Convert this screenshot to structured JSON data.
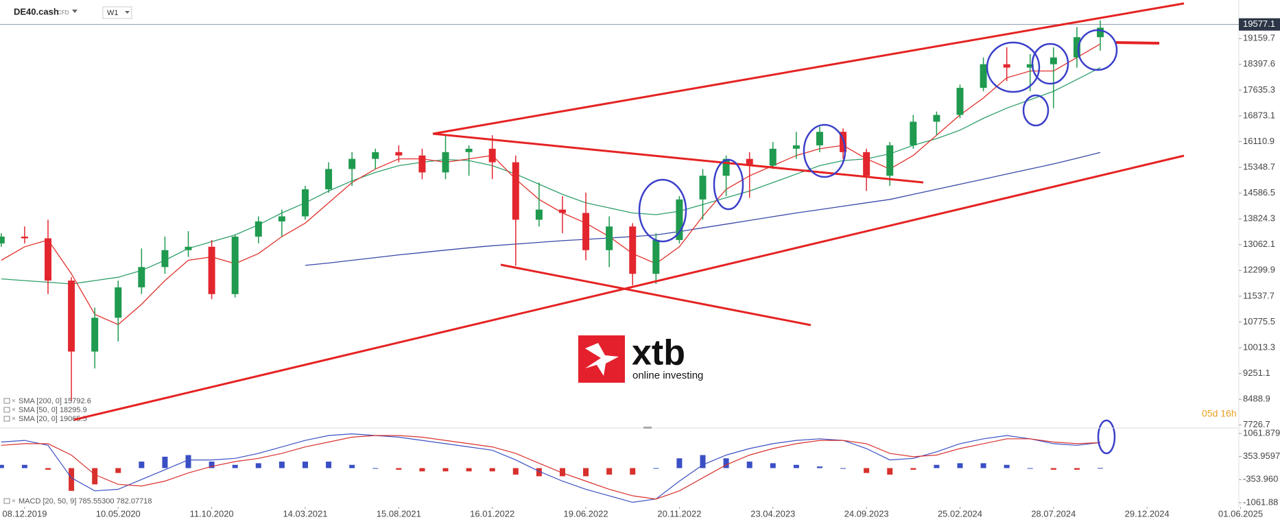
{
  "header": {
    "symbol": "DE40.cash",
    "instrument_type": "CFD",
    "timeframe": "W1"
  },
  "brand": {
    "name": "xtb",
    "tagline": "online investing"
  },
  "chart_data": {
    "type": "candlestick",
    "countdown": "05d 16h",
    "last_price": 19577.1,
    "categories": [
      null,
      "08.12.2019",
      null,
      null,
      null,
      "10.05.2020",
      null,
      null,
      null,
      "11.10.2020",
      null,
      null,
      null,
      "14.03.2021",
      null,
      null,
      null,
      "15.08.2021",
      null,
      null,
      null,
      "16.01.2022",
      null,
      null,
      null,
      "19.06.2022",
      null,
      null,
      null,
      "20.11.2022",
      null,
      null,
      null,
      "23.04.2023",
      null,
      null,
      null,
      "24.09.2023",
      null,
      null,
      null,
      "25.02.2024",
      null,
      null,
      null,
      "28.07.2024",
      null,
      null,
      null,
      "29.12.2024",
      null,
      null,
      null,
      "01.06.2025"
    ],
    "open": [
      13100,
      13300,
      13250,
      12000,
      9900,
      10900,
      11800,
      12400,
      12900,
      13000,
      11600,
      13300,
      13750,
      13900,
      14700,
      15300,
      15600,
      15800,
      15700,
      15200,
      15800,
      15900,
      15500,
      13800,
      14100,
      14000,
      12900,
      13600,
      12200,
      13200,
      14400,
      15100,
      15600,
      15400,
      15900,
      16000,
      16400,
      15800,
      15100,
      16000,
      16700,
      16900,
      17700,
      18400,
      18300,
      18400,
      18600,
      19200,
      null,
      null,
      null,
      null,
      null,
      null
    ],
    "high": [
      13400,
      13600,
      13800,
      12100,
      11200,
      12000,
      12950,
      13300,
      13460,
      13200,
      13350,
      13900,
      14100,
      14800,
      15500,
      15800,
      15900,
      16000,
      15900,
      16300,
      16000,
      16300,
      15700,
      14900,
      14500,
      14600,
      13900,
      13700,
      13400,
      14500,
      15300,
      15700,
      15800,
      16100,
      16400,
      16550,
      16500,
      15900,
      16100,
      16900,
      17000,
      17800,
      18600,
      18900,
      18700,
      18900,
      19500,
      19700,
      null,
      null,
      null,
      null,
      null,
      null
    ],
    "low": [
      13000,
      13100,
      11600,
      8440,
      9400,
      10200,
      11600,
      12200,
      12700,
      11450,
      11500,
      13100,
      13300,
      13800,
      14600,
      14800,
      15300,
      15500,
      15000,
      15000,
      15100,
      15000,
      12440,
      13600,
      13400,
      12600,
      12400,
      11860,
      11900,
      13100,
      13800,
      14500,
      14450,
      15300,
      15600,
      15800,
      15600,
      14650,
      14800,
      15900,
      16300,
      16800,
      17600,
      17900,
      17600,
      17100,
      18300,
      18800,
      null,
      null,
      null,
      null,
      null,
      null
    ],
    "close": [
      13300,
      13250,
      12000,
      9900,
      10900,
      11800,
      12400,
      12900,
      13000,
      11600,
      13300,
      13750,
      13900,
      14700,
      15300,
      15600,
      15800,
      15700,
      15200,
      15800,
      15900,
      15500,
      13800,
      14100,
      14000,
      12900,
      13600,
      12200,
      13200,
      14400,
      15100,
      15600,
      15400,
      15900,
      16000,
      16400,
      15800,
      15100,
      16000,
      16700,
      16900,
      17700,
      18400,
      18300,
      18400,
      18600,
      19200,
      19480,
      null,
      null,
      null,
      null,
      null,
      null
    ],
    "up_color": "#1f9a4f",
    "down_color": "#e3262e",
    "ylim": [
      7680,
      20300
    ],
    "yticks": [
      19159.7,
      18397.6,
      17635.3,
      16873.1,
      16110.9,
      15348.7,
      14586.5,
      13824.3,
      13062.1,
      12299.9,
      11537.7,
      10775.5,
      10013.3,
      9251.1,
      8488.9,
      7726.7
    ],
    "overlays": [
      {
        "name": "SMA [200, 0]",
        "last": 15792.6,
        "color": "#3848a8",
        "values": [
          null,
          null,
          null,
          null,
          null,
          null,
          null,
          null,
          null,
          null,
          null,
          null,
          null,
          12450,
          12520,
          12600,
          12680,
          12760,
          12830,
          12900,
          12970,
          13030,
          13080,
          13130,
          13180,
          13220,
          13260,
          13300,
          13350,
          13450,
          13560,
          13670,
          13780,
          13890,
          14000,
          14100,
          14200,
          14300,
          14400,
          14550,
          14700,
          14850,
          15000,
          15150,
          15300,
          15450,
          15620,
          15790,
          null,
          null,
          null,
          null,
          null,
          null
        ]
      },
      {
        "name": "SMA [50, 0]",
        "last": 18295.9,
        "color": "#2e9e6a",
        "values": [
          12050,
          12000,
          11950,
          11900,
          12000,
          12100,
          12300,
          12600,
          12950,
          13150,
          13350,
          13650,
          14000,
          14300,
          14650,
          14950,
          15200,
          15400,
          15500,
          15580,
          15550,
          15400,
          15150,
          14850,
          14550,
          14300,
          14150,
          14000,
          13950,
          14050,
          14250,
          14450,
          14650,
          14900,
          15150,
          15400,
          15550,
          15600,
          15750,
          16000,
          16200,
          16450,
          16800,
          17100,
          17350,
          17600,
          17950,
          18300,
          null,
          null,
          null,
          null,
          null,
          null
        ]
      },
      {
        "name": "SMA [20, 0]",
        "last": 19065.5,
        "color": "#e0302b",
        "values": [
          12600,
          13000,
          13200,
          12200,
          11000,
          10700,
          11300,
          12000,
          12600,
          12700,
          12500,
          12800,
          13300,
          13700,
          14300,
          14900,
          15300,
          15600,
          15600,
          15500,
          15600,
          15700,
          15000,
          14400,
          14000,
          13700,
          13300,
          12800,
          12500,
          13000,
          13900,
          14700,
          15100,
          15400,
          15700,
          15900,
          16000,
          15600,
          15300,
          15700,
          16300,
          16900,
          17400,
          18000,
          18200,
          18200,
          18600,
          19000,
          null,
          null,
          null,
          null,
          null,
          null
        ]
      }
    ],
    "macd": {
      "name": "MACD [20, 50, 9]",
      "legend_values": [
        {
          "value": 785.553,
          "label": "785.55300"
        },
        782.07718
      ],
      "ylim": [
        -1190,
        1190
      ],
      "yticks": [
        1061.879,
        353.9597,
        {
          "value": -353.96,
          "label": "-353.960"
        },
        -1061.88
      ],
      "line_color": "#3a4fc4",
      "signal_color": "#d8302c",
      "line": [
        800,
        850,
        700,
        -300,
        -700,
        -650,
        -350,
        -50,
        250,
        250,
        300,
        450,
        650,
        850,
        1000,
        1050,
        1000,
        950,
        850,
        750,
        650,
        550,
        250,
        -100,
        -400,
        -650,
        -850,
        -1050,
        -950,
        -400,
        100,
        400,
        600,
        750,
        850,
        900,
        850,
        600,
        250,
        300,
        500,
        750,
        900,
        1000,
        900,
        750,
        700,
        785.553,
        null,
        null,
        null,
        null,
        null,
        null
      ],
      "signal": [
        700,
        750,
        750,
        400,
        -200,
        -500,
        -550,
        -400,
        -150,
        50,
        200,
        300,
        450,
        650,
        800,
        950,
        1000,
        1000,
        950,
        850,
        750,
        650,
        450,
        150,
        -150,
        -400,
        -650,
        -850,
        -950,
        -700,
        -300,
        100,
        400,
        600,
        750,
        850,
        850,
        750,
        450,
        350,
        400,
        600,
        750,
        900,
        900,
        800,
        750,
        782.07718,
        null,
        null,
        null,
        null,
        null,
        null
      ],
      "histogram": [
        100,
        100,
        -50,
        -700,
        -500,
        -150,
        200,
        350,
        400,
        200,
        100,
        150,
        200,
        200,
        200,
        100,
        0,
        -50,
        -100,
        -100,
        -100,
        -100,
        -200,
        -250,
        -250,
        -250,
        -200,
        -200,
        0,
        300,
        400,
        300,
        200,
        150,
        100,
        50,
        0,
        -150,
        -200,
        -50,
        100,
        150,
        150,
        100,
        0,
        -50,
        -50,
        3.5,
        null,
        null,
        null,
        null,
        null,
        null
      ]
    }
  }
}
